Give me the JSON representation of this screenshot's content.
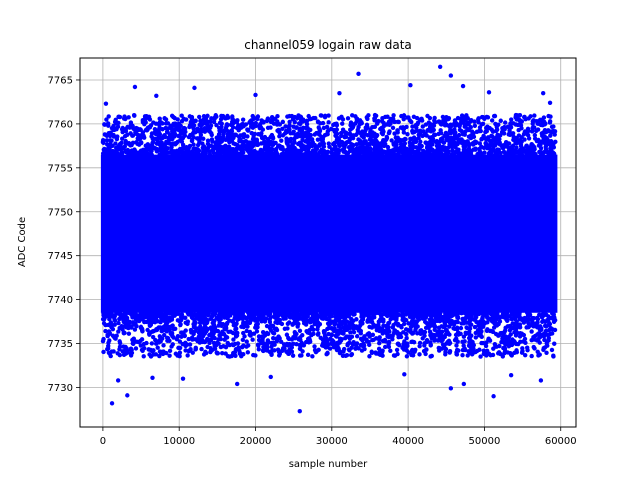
{
  "chart_data": {
    "type": "scatter",
    "title": "channel059 logain raw data",
    "xlabel": "sample number",
    "ylabel": "ADC Code",
    "xlim": [
      -3000,
      62000
    ],
    "ylim": [
      7725.5,
      7767.5
    ],
    "xticks": [
      0,
      10000,
      20000,
      30000,
      40000,
      50000,
      60000
    ],
    "xtick_labels": [
      "0",
      "10000",
      "20000",
      "30000",
      "40000",
      "50000",
      "60000"
    ],
    "yticks": [
      7730,
      7735,
      7740,
      7745,
      7750,
      7755,
      7760,
      7765
    ],
    "ytick_labels": [
      "7730",
      "7735",
      "7740",
      "7745",
      "7750",
      "7755",
      "7760",
      "7765"
    ],
    "grid": true,
    "marker_color": "#0000ff",
    "series": [
      {
        "x_range": [
          0,
          59300
        ],
        "core_band": [
          7738.5,
          7756.5
        ],
        "outer_band": [
          7733.5,
          7761.0
        ],
        "outliers": [
          [
            1200,
            7728.2
          ],
          [
            3200,
            7729.1
          ],
          [
            25800,
            7727.3
          ],
          [
            51200,
            7729.0
          ],
          [
            45600,
            7729.9
          ],
          [
            4200,
            7764.2
          ],
          [
            12000,
            7764.1
          ],
          [
            33500,
            7765.7
          ],
          [
            44200,
            7766.5
          ],
          [
            45600,
            7765.5
          ],
          [
            47200,
            7764.3
          ],
          [
            40300,
            7764.4
          ],
          [
            400,
            7762.3
          ],
          [
            7000,
            7763.2
          ],
          [
            20000,
            7763.3
          ],
          [
            31000,
            7763.5
          ],
          [
            50600,
            7763.6
          ],
          [
            57700,
            7763.5
          ],
          [
            58600,
            7762.4
          ],
          [
            2000,
            7730.8
          ],
          [
            6500,
            7731.1
          ],
          [
            10500,
            7731.0
          ],
          [
            17600,
            7730.4
          ],
          [
            22000,
            7731.2
          ],
          [
            39500,
            7731.5
          ],
          [
            47300,
            7730.4
          ],
          [
            53500,
            7731.4
          ],
          [
            57400,
            7730.8
          ]
        ]
      }
    ]
  }
}
